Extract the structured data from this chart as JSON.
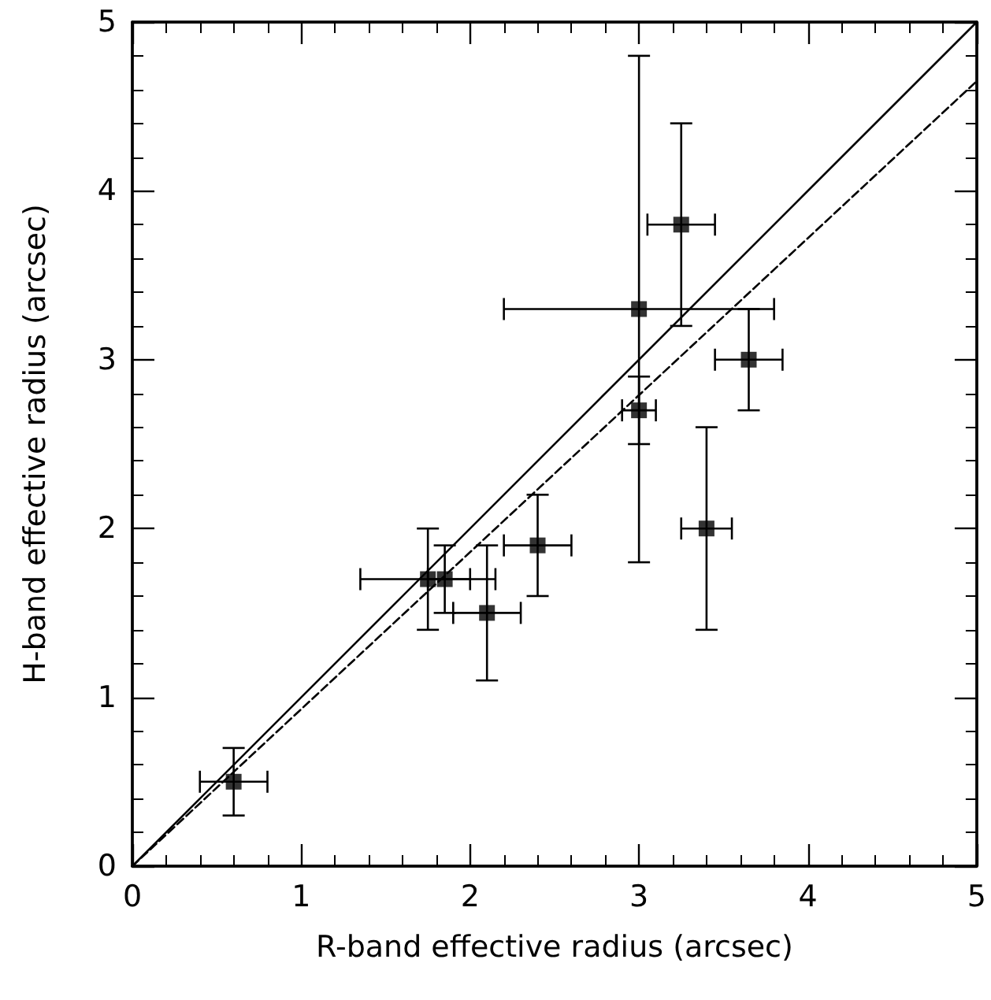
{
  "chart_data": {
    "type": "scatter",
    "xlabel": "R-band effective radius (arcsec)",
    "ylabel": "H-band effective radius (arcsec)",
    "xlim": [
      0,
      5
    ],
    "ylim": [
      0,
      5
    ],
    "xticks": [
      0,
      1,
      2,
      3,
      4,
      5
    ],
    "yticks": [
      0,
      1,
      2,
      3,
      4,
      5
    ],
    "grid": false,
    "series": [
      {
        "color": "#000000",
        "marker": "square",
        "x": [
          0.6,
          1.75,
          1.85,
          2.1,
          2.4,
          3.0,
          3.0,
          3.25,
          3.65,
          3.4
        ],
        "values": [
          0.5,
          1.7,
          1.7,
          1.5,
          1.9,
          2.7,
          3.3,
          3.8,
          3.0,
          2.0
        ],
        "errors": [
          [
            0.3,
            0.7
          ],
          [
            1.4,
            2.0
          ],
          [
            1.5,
            1.9
          ],
          [
            1.1,
            1.9
          ],
          [
            1.6,
            2.2
          ],
          [
            2.5,
            2.9
          ],
          [
            1.8,
            4.8
          ],
          [
            3.2,
            4.4
          ],
          [
            2.7,
            3.3
          ],
          [
            1.4,
            2.6
          ]
        ],
        "xerrors": [
          [
            0.4,
            0.8
          ],
          [
            1.35,
            2.15
          ],
          [
            1.75,
            2.0
          ],
          [
            1.9,
            2.3
          ],
          [
            2.2,
            2.6
          ],
          [
            2.9,
            3.1
          ],
          [
            2.2,
            3.8
          ],
          [
            3.05,
            3.45
          ],
          [
            3.45,
            3.85
          ],
          [
            3.25,
            3.55
          ]
        ]
      },
      {
        "type": "line",
        "color": "#000000",
        "marker": "none",
        "line_style": "solid",
        "x": [
          0,
          5
        ],
        "values": [
          0,
          5
        ]
      },
      {
        "type": "line",
        "color": "#000000",
        "marker": "none",
        "line_style": "dashed",
        "x": [
          0,
          5
        ],
        "values": [
          0,
          4.65
        ]
      }
    ]
  }
}
